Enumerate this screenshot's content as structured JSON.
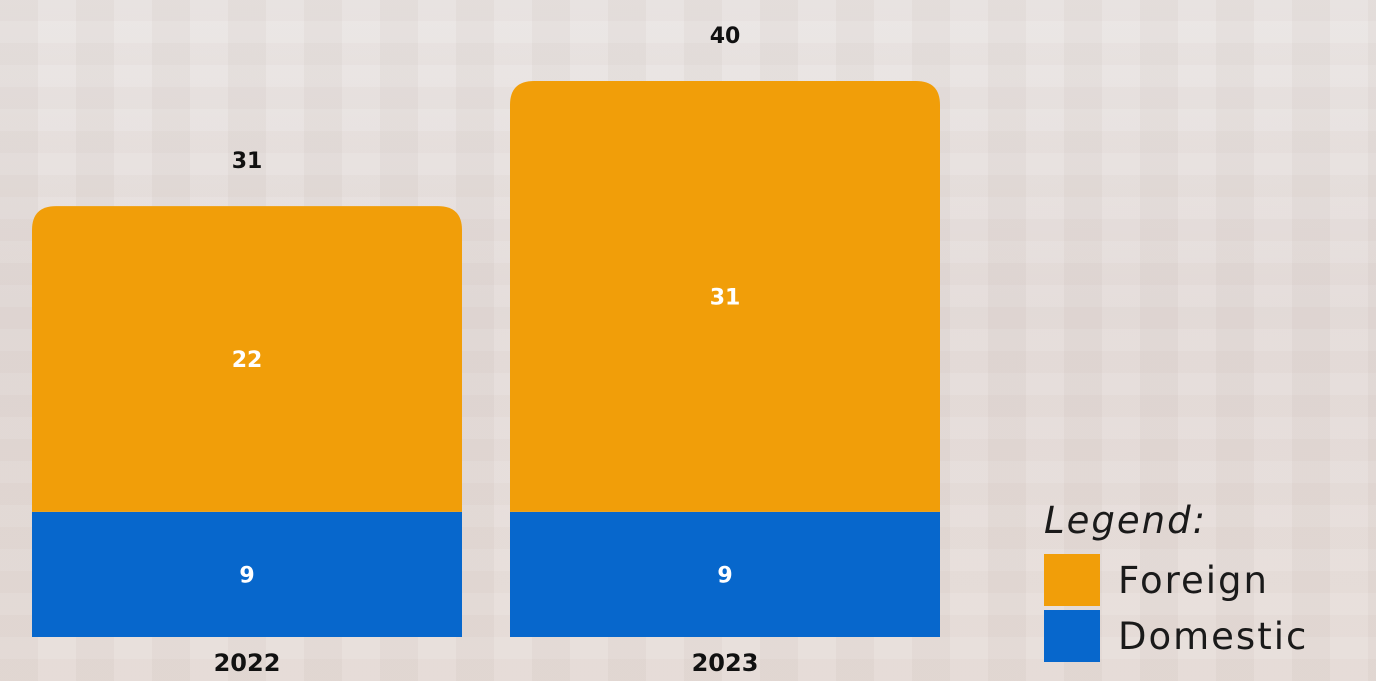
{
  "chart_data": {
    "type": "bar",
    "stacked": true,
    "categories": [
      "2022",
      "2023"
    ],
    "series": [
      {
        "name": "Domestic",
        "values": [
          9,
          9
        ],
        "color": "#0767cc"
      },
      {
        "name": "Foreign",
        "values": [
          22,
          31
        ],
        "color": "#f19e09"
      }
    ],
    "totals": [
      31,
      40
    ],
    "legend_placement": "bottom-right",
    "grid": false
  },
  "legend": {
    "title": "Legend:",
    "items": [
      {
        "label": "Foreign",
        "color": "#f19e09"
      },
      {
        "label": "Domestic",
        "color": "#0767cc"
      }
    ]
  }
}
